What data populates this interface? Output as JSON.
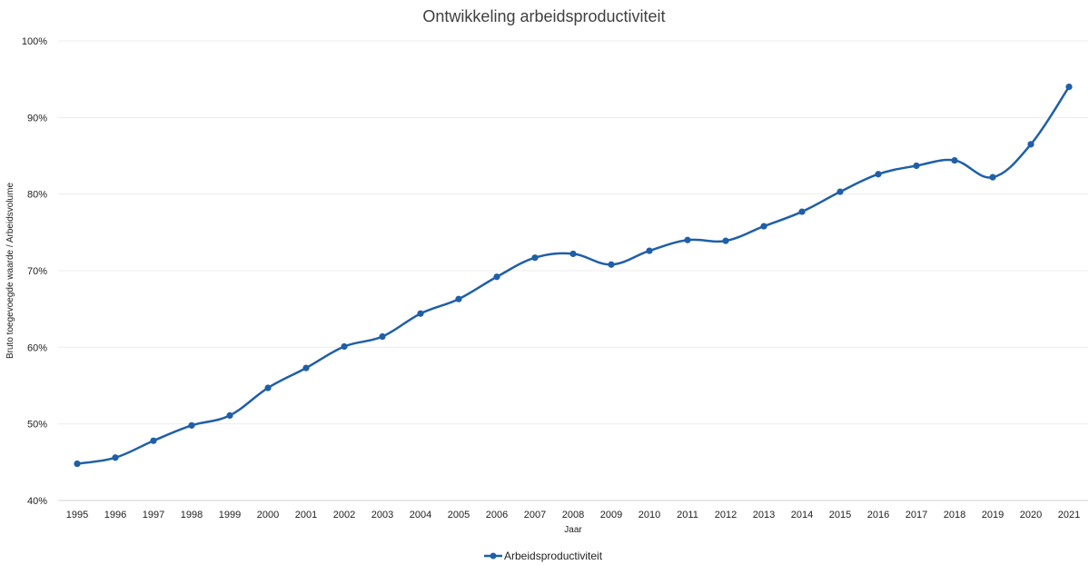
{
  "chart_data": {
    "type": "line",
    "title": "Ontwikkeling arbeidsproductiviteit",
    "xlabel": "Jaar",
    "ylabel": "Bruto toegevoegde waarde / Arbeidsvolume",
    "ylim": [
      40,
      100
    ],
    "yticks": [
      "40%",
      "50%",
      "60%",
      "70%",
      "80%",
      "90%",
      "100%"
    ],
    "categories": [
      "1995",
      "1996",
      "1997",
      "1998",
      "1999",
      "2000",
      "2001",
      "2002",
      "2003",
      "2004",
      "2005",
      "2006",
      "2007",
      "2008",
      "2009",
      "2010",
      "2011",
      "2012",
      "2013",
      "2014",
      "2015",
      "2016",
      "2017",
      "2018",
      "2019",
      "2020",
      "2021"
    ],
    "series": [
      {
        "name": "Arbeidsproductiviteit",
        "color": "#1f5fa8",
        "values": [
          44.8,
          45.6,
          47.8,
          49.8,
          51.1,
          54.7,
          57.3,
          60.1,
          61.4,
          64.4,
          66.3,
          69.2,
          71.7,
          72.2,
          70.8,
          72.6,
          74.0,
          73.9,
          75.8,
          77.7,
          80.3,
          82.6,
          83.7,
          84.4,
          82.2,
          86.5,
          94.0
        ]
      }
    ],
    "grid": true,
    "legend": "bottom"
  }
}
